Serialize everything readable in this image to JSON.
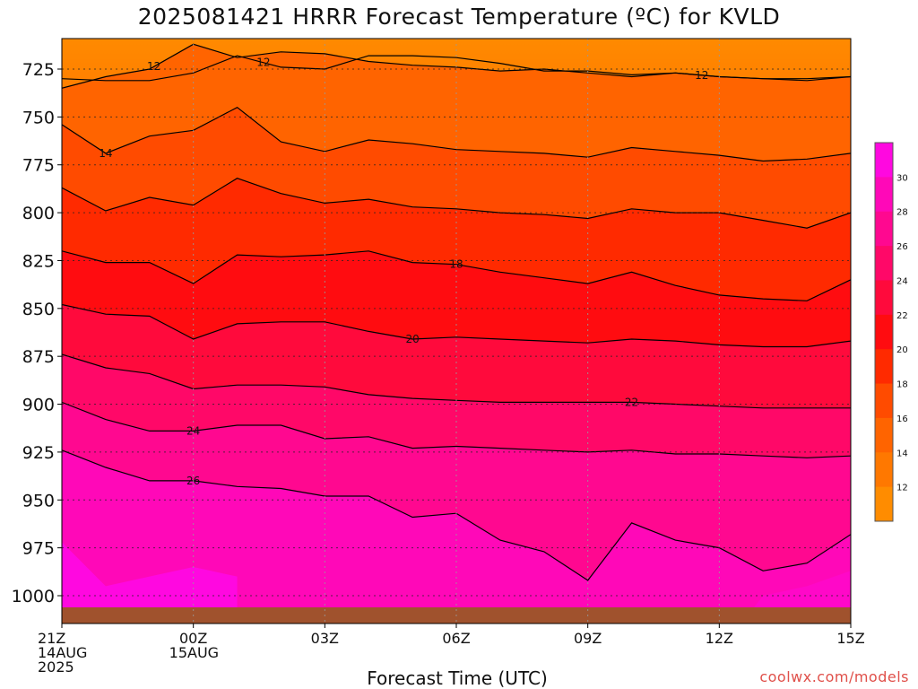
{
  "title": "2025081421 HRRR Forecast Temperature (ºC) for KVLD",
  "watermark": "coolwx.com/models",
  "chart_data": {
    "type": "heatmap",
    "title": "2025081421 HRRR Forecast Temperature (ºC) for KVLD",
    "xlabel": "Forecast Time (UTC)",
    "ylabel": "",
    "x_ticks": [
      {
        "hour": 0,
        "label": [
          "21Z",
          "14AUG",
          "2025"
        ]
      },
      {
        "hour": 3,
        "label": [
          "00Z",
          "15AUG"
        ]
      },
      {
        "hour": 6,
        "label": [
          "03Z"
        ]
      },
      {
        "hour": 9,
        "label": [
          "06Z"
        ]
      },
      {
        "hour": 12,
        "label": [
          "09Z"
        ]
      },
      {
        "hour": 15,
        "label": [
          "12Z"
        ]
      },
      {
        "hour": 18,
        "label": [
          "15Z"
        ]
      }
    ],
    "xlim": [
      0,
      18
    ],
    "y_ticks": [
      725,
      750,
      775,
      800,
      825,
      850,
      875,
      900,
      925,
      950,
      975,
      1000
    ],
    "ylim": [
      705,
      1015
    ],
    "colorbar": {
      "labels": [
        12,
        14,
        16,
        18,
        20,
        22,
        24,
        26,
        28,
        30
      ],
      "colors": [
        "#ff8c00",
        "#ff7800",
        "#ff6400",
        "#ff4b00",
        "#ff2a00",
        "#ff0c10",
        "#ff0a3c",
        "#ff0868",
        "#ff0890",
        "#ff08b8",
        "#ff08e0"
      ]
    },
    "contours": [
      {
        "value": 12,
        "labels": [
          {
            "x": 2.1,
            "text": "12"
          },
          {
            "x": 14.6,
            "text": "12"
          }
        ],
        "points": [
          [
            0,
            735
          ],
          [
            1,
            729
          ],
          [
            2,
            725
          ],
          [
            3,
            712
          ],
          [
            4,
            719
          ],
          [
            5,
            716
          ],
          [
            6,
            717
          ],
          [
            7,
            721
          ],
          [
            8,
            723
          ],
          [
            9,
            724
          ],
          [
            10,
            726
          ],
          [
            11,
            725
          ],
          [
            12,
            727
          ],
          [
            13,
            729
          ],
          [
            14,
            727
          ],
          [
            15,
            729
          ],
          [
            16,
            730
          ],
          [
            17,
            731
          ],
          [
            18,
            729
          ]
        ]
      },
      {
        "value": 12,
        "labels": [
          {
            "x": 4.6,
            "text": "12"
          }
        ],
        "points": [
          [
            0,
            730
          ],
          [
            1,
            731
          ],
          [
            2,
            731
          ],
          [
            3,
            727
          ],
          [
            4,
            718
          ],
          [
            5,
            724
          ],
          [
            6,
            725
          ],
          [
            7,
            718
          ],
          [
            8,
            718
          ],
          [
            9,
            719
          ],
          [
            10,
            722
          ],
          [
            11,
            726
          ],
          [
            12,
            726
          ],
          [
            13,
            728
          ],
          [
            14,
            727
          ],
          [
            15,
            729
          ],
          [
            16,
            730
          ],
          [
            17,
            730
          ],
          [
            18,
            729
          ]
        ]
      },
      {
        "value": 14,
        "labels": [
          {
            "x": 1.0,
            "text": "14"
          }
        ],
        "points": [
          [
            0,
            754
          ],
          [
            1,
            769
          ],
          [
            2,
            760
          ],
          [
            3,
            757
          ],
          [
            4,
            745
          ],
          [
            5,
            763
          ],
          [
            6,
            768
          ],
          [
            7,
            762
          ],
          [
            8,
            764
          ],
          [
            9,
            767
          ],
          [
            10,
            768
          ],
          [
            11,
            769
          ],
          [
            12,
            771
          ],
          [
            13,
            766
          ],
          [
            14,
            768
          ],
          [
            15,
            770
          ],
          [
            16,
            773
          ],
          [
            17,
            772
          ],
          [
            18,
            769
          ]
        ]
      },
      {
        "value": 16,
        "labels": [],
        "points": [
          [
            0,
            787
          ],
          [
            1,
            799
          ],
          [
            2,
            792
          ],
          [
            3,
            796
          ],
          [
            4,
            782
          ],
          [
            5,
            790
          ],
          [
            6,
            795
          ],
          [
            7,
            793
          ],
          [
            8,
            797
          ],
          [
            9,
            798
          ],
          [
            10,
            800
          ],
          [
            11,
            801
          ],
          [
            12,
            803
          ],
          [
            13,
            798
          ],
          [
            14,
            800
          ],
          [
            15,
            800
          ],
          [
            16,
            804
          ],
          [
            17,
            808
          ],
          [
            18,
            800
          ]
        ]
      },
      {
        "value": 18,
        "labels": [
          {
            "x": 9.0,
            "text": "18"
          }
        ],
        "points": [
          [
            0,
            820
          ],
          [
            1,
            826
          ],
          [
            2,
            826
          ],
          [
            3,
            837
          ],
          [
            4,
            822
          ],
          [
            5,
            823
          ],
          [
            6,
            822
          ],
          [
            7,
            820
          ],
          [
            8,
            826
          ],
          [
            9,
            827
          ],
          [
            10,
            831
          ],
          [
            11,
            834
          ],
          [
            12,
            837
          ],
          [
            13,
            831
          ],
          [
            14,
            838
          ],
          [
            15,
            843
          ],
          [
            16,
            845
          ],
          [
            17,
            846
          ],
          [
            18,
            835
          ]
        ]
      },
      {
        "value": 20,
        "labels": [
          {
            "x": 8.0,
            "text": "20"
          }
        ],
        "points": [
          [
            0,
            848
          ],
          [
            1,
            853
          ],
          [
            2,
            854
          ],
          [
            3,
            866
          ],
          [
            4,
            858
          ],
          [
            5,
            857
          ],
          [
            6,
            857
          ],
          [
            7,
            862
          ],
          [
            8,
            866
          ],
          [
            9,
            865
          ],
          [
            10,
            866
          ],
          [
            11,
            867
          ],
          [
            12,
            868
          ],
          [
            13,
            866
          ],
          [
            14,
            867
          ],
          [
            15,
            869
          ],
          [
            16,
            870
          ],
          [
            17,
            870
          ],
          [
            18,
            867
          ]
        ]
      },
      {
        "value": 22,
        "labels": [
          {
            "x": 13.0,
            "text": "22"
          }
        ],
        "points": [
          [
            0,
            874
          ],
          [
            1,
            881
          ],
          [
            2,
            884
          ],
          [
            3,
            892
          ],
          [
            4,
            890
          ],
          [
            5,
            890
          ],
          [
            6,
            891
          ],
          [
            7,
            895
          ],
          [
            8,
            897
          ],
          [
            9,
            898
          ],
          [
            10,
            899
          ],
          [
            11,
            899
          ],
          [
            12,
            899
          ],
          [
            13,
            899
          ],
          [
            14,
            900
          ],
          [
            15,
            901
          ],
          [
            16,
            902
          ],
          [
            17,
            902
          ],
          [
            18,
            902
          ]
        ]
      },
      {
        "value": 24,
        "labels": [
          {
            "x": 3.0,
            "text": "24"
          }
        ],
        "points": [
          [
            0,
            899
          ],
          [
            1,
            908
          ],
          [
            2,
            914
          ],
          [
            3,
            914
          ],
          [
            4,
            911
          ],
          [
            5,
            911
          ],
          [
            6,
            918
          ],
          [
            7,
            917
          ],
          [
            8,
            923
          ],
          [
            9,
            922
          ],
          [
            10,
            923
          ],
          [
            11,
            924
          ],
          [
            12,
            925
          ],
          [
            13,
            924
          ],
          [
            14,
            926
          ],
          [
            15,
            926
          ],
          [
            16,
            927
          ],
          [
            17,
            928
          ],
          [
            18,
            927
          ]
        ]
      },
      {
        "value": 26,
        "labels": [
          {
            "x": 3.0,
            "text": "26"
          }
        ],
        "points": [
          [
            0,
            924
          ],
          [
            1,
            933
          ],
          [
            2,
            940
          ],
          [
            3,
            940
          ],
          [
            4,
            943
          ],
          [
            5,
            944
          ],
          [
            6,
            948
          ],
          [
            7,
            948
          ],
          [
            8,
            959
          ],
          [
            9,
            957
          ],
          [
            10,
            971
          ],
          [
            11,
            977
          ],
          [
            12,
            992
          ],
          [
            13,
            962
          ],
          [
            14,
            971
          ],
          [
            15,
            975
          ],
          [
            16,
            987
          ],
          [
            17,
            983
          ],
          [
            18,
            968
          ]
        ]
      }
    ]
  }
}
